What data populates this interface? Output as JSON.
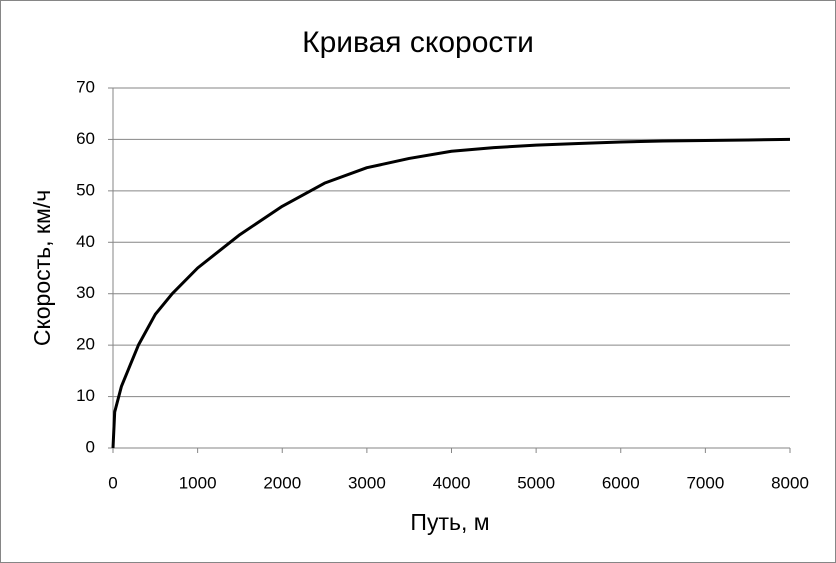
{
  "chart_data": {
    "type": "line",
    "title": "Кривая скорости",
    "x_label": "Путь, м",
    "y_label": "Скорость, км/ч",
    "x": [
      0,
      20,
      100,
      200,
      300,
      500,
      700,
      1000,
      1500,
      2000,
      2500,
      3000,
      3500,
      4000,
      4500,
      5000,
      5500,
      6000,
      6500,
      7000,
      7500,
      8000
    ],
    "series": [
      {
        "name": "Скорость",
        "color": "#000000",
        "values": [
          0,
          7,
          12,
          16,
          20,
          26,
          30,
          35,
          41.5,
          47,
          51.5,
          54.5,
          56.3,
          57.7,
          58.4,
          58.9,
          59.2,
          59.5,
          59.7,
          59.8,
          59.9,
          60
        ]
      }
    ],
    "xlim": [
      0,
      8000
    ],
    "xticks": [
      0,
      1000,
      2000,
      3000,
      4000,
      5000,
      6000,
      7000,
      8000
    ],
    "ylim": [
      0,
      70
    ],
    "yticks": [
      0,
      10,
      20,
      30,
      40,
      50,
      60,
      70
    ],
    "grid": true
  }
}
